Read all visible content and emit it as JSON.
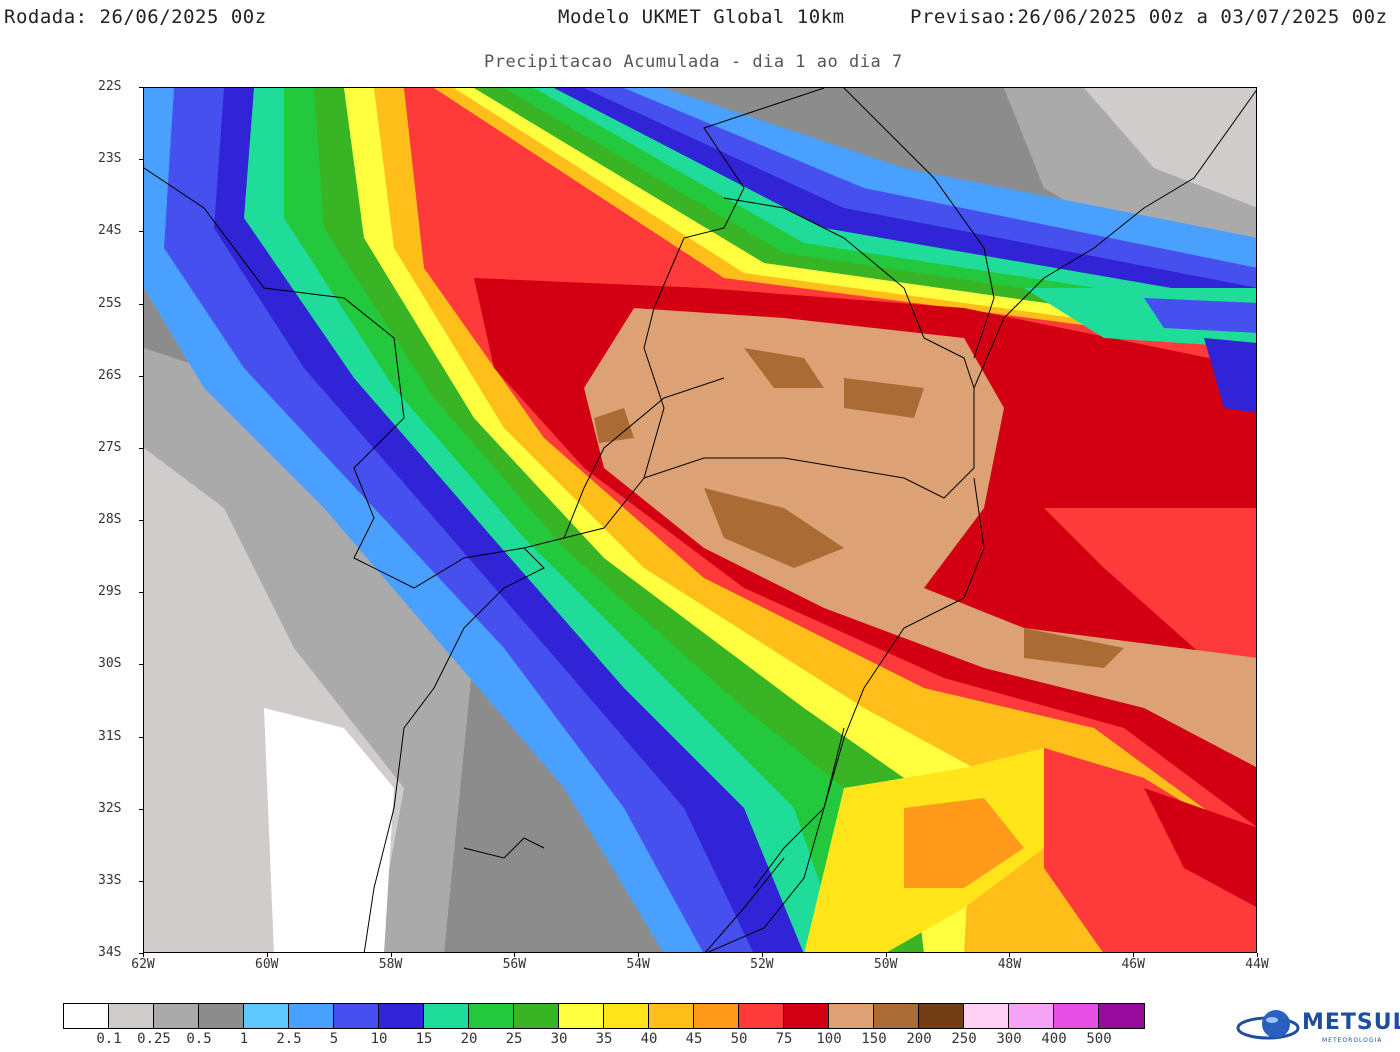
{
  "header": {
    "run": "Rodada: 26/06/2025 00z",
    "model": "Modelo UKMET Global 10km",
    "forecast": "Previsao:26/06/2025 00z a 03/07/2025 00z",
    "subtitle": "Precipitacao Acumulada - dia 1 ao dia 7"
  },
  "map": {
    "lat_labels": [
      "22S",
      "23S",
      "24S",
      "25S",
      "26S",
      "27S",
      "28S",
      "29S",
      "30S",
      "31S",
      "32S",
      "33S",
      "34S"
    ],
    "lon_labels": [
      "62W",
      "60W",
      "58W",
      "56W",
      "54W",
      "52W",
      "50W",
      "48W",
      "46W",
      "44W"
    ]
  },
  "legend": {
    "colors": [
      "#ffffff",
      "#d0cccc",
      "#aaaaaa",
      "#8c8c8c",
      "#5fc8ff",
      "#4aa0ff",
      "#4650ee",
      "#3124d6",
      "#1fdc9a",
      "#24c83c",
      "#38b424",
      "#ffff40",
      "#ffe51a",
      "#ffbe1a",
      "#ff9a1a",
      "#ff3a3a",
      "#d20012",
      "#dca276",
      "#aa6c34",
      "#723c14",
      "#ffd2f5",
      "#f5a4f5",
      "#e650e6",
      "#960a9c"
    ],
    "labels": [
      "0.1",
      "0.25",
      "0.5",
      "1",
      "2.5",
      "5",
      "10",
      "15",
      "20",
      "25",
      "30",
      "35",
      "40",
      "45",
      "50",
      "75",
      "100",
      "150",
      "200",
      "250",
      "300",
      "400",
      "500"
    ]
  },
  "logo": {
    "text": "METSUL",
    "subtext": "METEOROLOGIA"
  }
}
